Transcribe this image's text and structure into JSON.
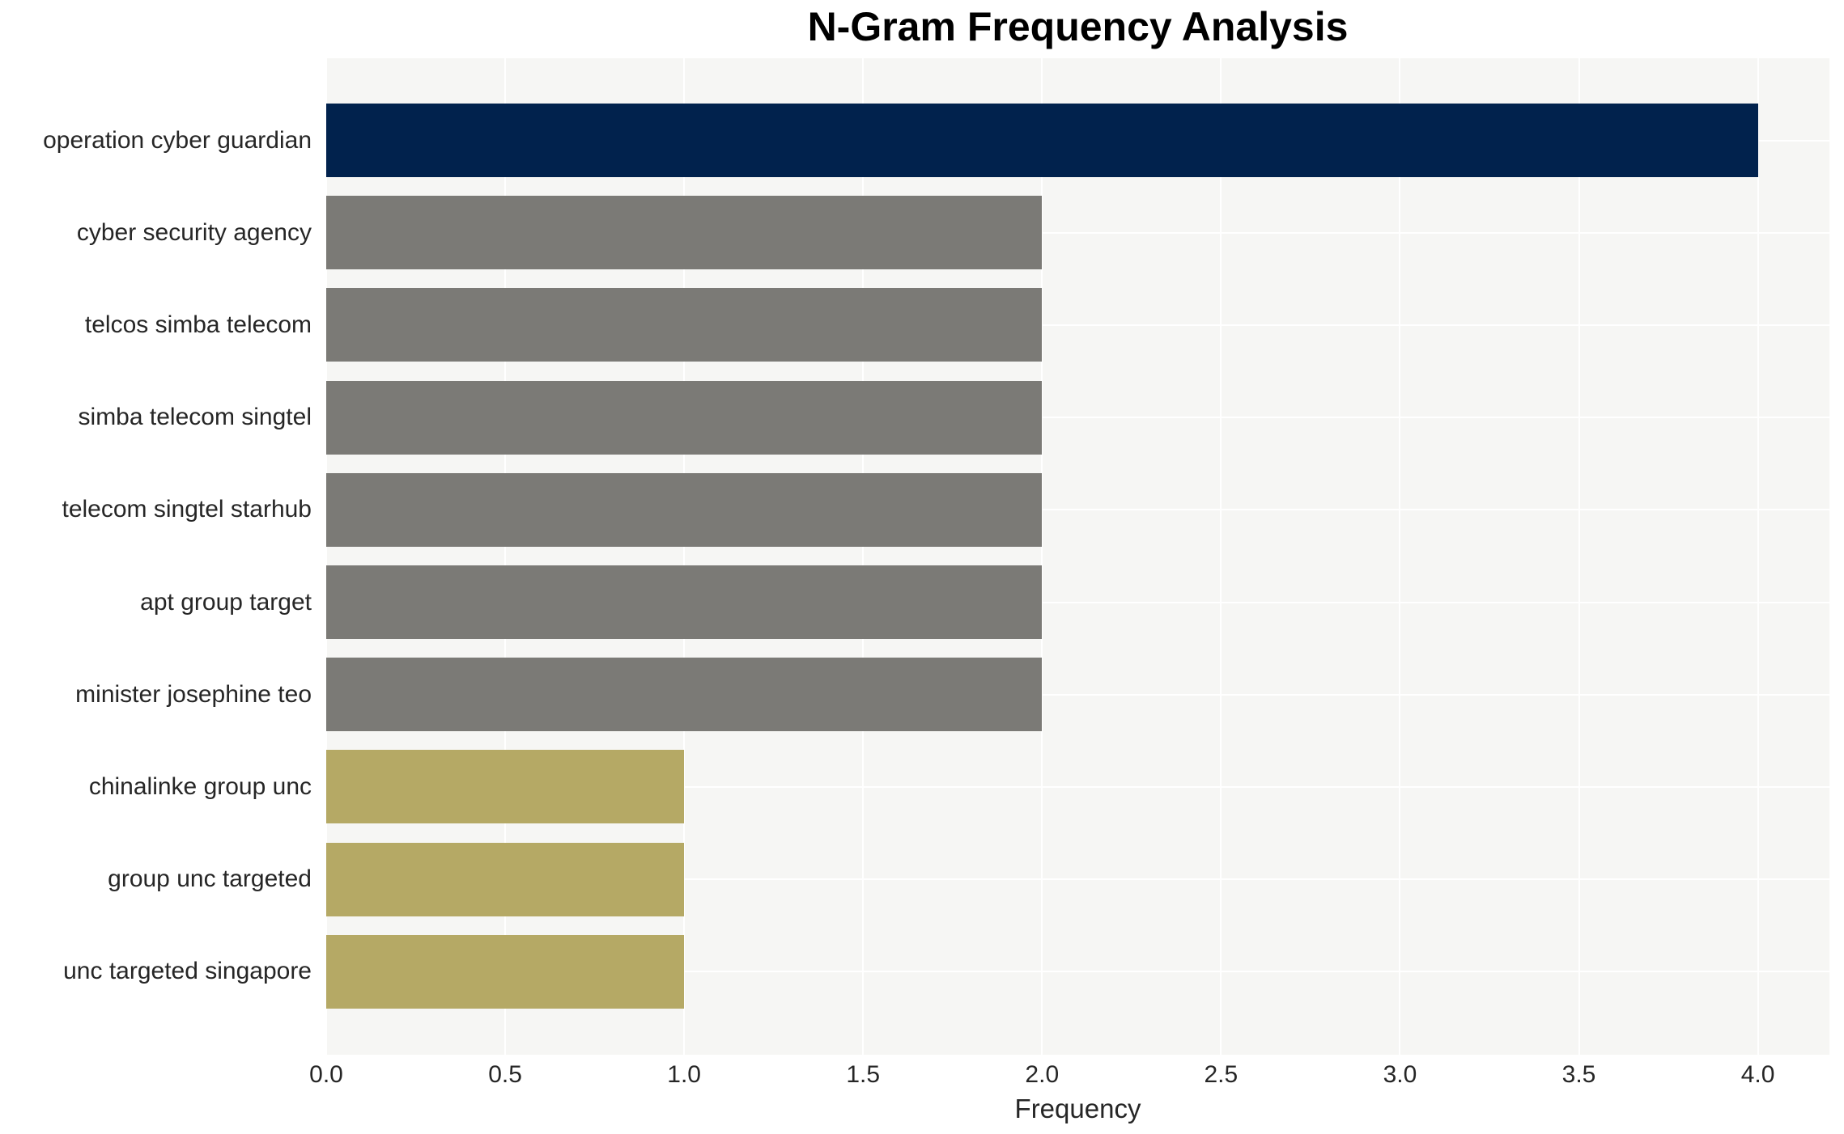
{
  "chart_data": {
    "type": "bar",
    "orientation": "horizontal",
    "title": "N-Gram Frequency Analysis",
    "xlabel": "Frequency",
    "categories": [
      "operation cyber guardian",
      "cyber security agency",
      "telcos simba telecom",
      "simba telecom singtel",
      "telecom singtel starhub",
      "apt group target",
      "minister josephine teo",
      "chinalinke group unc",
      "group unc targeted",
      "unc targeted singapore"
    ],
    "values": [
      4,
      2,
      2,
      2,
      2,
      2,
      2,
      1,
      1,
      1
    ],
    "bar_colors": [
      "#01224d",
      "#7b7a76",
      "#7b7a76",
      "#7b7a76",
      "#7b7a76",
      "#7b7a76",
      "#7b7a76",
      "#b5a965",
      "#b5a965",
      "#b5a965"
    ],
    "xlim": [
      0,
      4.2
    ],
    "xticks": [
      0,
      0.5,
      1,
      1.5,
      2,
      2.5,
      3,
      3.5,
      4
    ],
    "xtick_labels": [
      "0.0",
      "0.5",
      "1.0",
      "1.5",
      "2.0",
      "2.5",
      "3.0",
      "3.5",
      "4.0"
    ],
    "grid": true,
    "legend": "none",
    "plot_bg_color": "#f6f6f4",
    "grid_color": "#ffffff",
    "title_color": "#000000",
    "tick_label_color": "#262626"
  }
}
